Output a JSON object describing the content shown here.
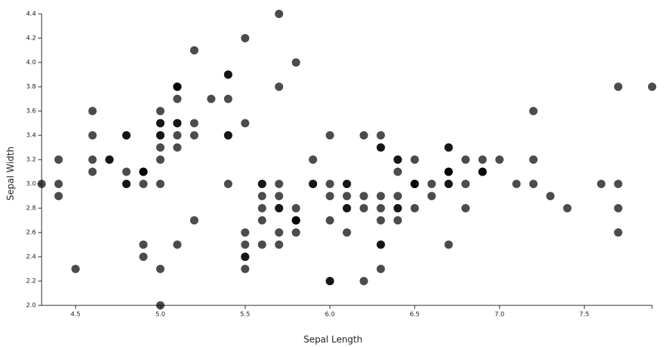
{
  "chart_data": {
    "type": "scatter",
    "x_label": "Sepal Length",
    "y_label": "Sepal Width",
    "color": "#000000",
    "opacity": 0.7,
    "xlim": [
      4.3,
      7.9
    ],
    "ylim": [
      2.0,
      4.4
    ],
    "xticks": [
      4.5,
      {
        "value": 5.0,
        "label": "5.0"
      },
      5.5,
      {
        "value": 6.0,
        "label": "6.0"
      },
      6.5,
      {
        "value": 7.0,
        "label": "7.0"
      },
      7.5
    ],
    "yticks": [
      {
        "value": 2.0,
        "label": "2.0"
      },
      2.2,
      2.4,
      2.6,
      2.8,
      {
        "value": 3.0,
        "label": "3.0"
      },
      3.2,
      3.4,
      3.6,
      3.8,
      {
        "value": 4.0,
        "label": "4.0"
      },
      4.2,
      4.4
    ],
    "x": [
      5.1,
      4.9,
      4.7,
      4.6,
      5.0,
      5.4,
      4.6,
      5.0,
      4.4,
      4.9,
      5.4,
      4.8,
      4.8,
      4.3,
      5.8,
      5.7,
      5.4,
      5.1,
      5.7,
      5.1,
      5.4,
      5.1,
      4.6,
      5.1,
      4.8,
      5.0,
      5.0,
      5.2,
      5.2,
      4.7,
      4.8,
      5.4,
      5.2,
      5.5,
      4.9,
      5.0,
      5.5,
      4.9,
      4.4,
      5.1,
      5.0,
      4.5,
      4.4,
      5.0,
      5.1,
      4.8,
      5.1,
      4.6,
      5.3,
      5.0,
      7.0,
      6.4,
      6.9,
      5.5,
      6.5,
      5.7,
      6.3,
      4.9,
      6.6,
      5.2,
      5.0,
      5.9,
      6.0,
      6.1,
      5.6,
      6.7,
      5.6,
      5.8,
      6.2,
      5.6,
      5.9,
      6.1,
      6.3,
      6.1,
      6.4,
      6.6,
      6.8,
      6.7,
      6.0,
      5.7,
      5.5,
      5.5,
      5.8,
      6.0,
      5.4,
      6.0,
      6.7,
      6.3,
      5.6,
      5.5,
      5.5,
      6.1,
      5.8,
      5.0,
      5.6,
      5.7,
      5.7,
      6.2,
      5.1,
      5.7,
      6.3,
      5.8,
      7.1,
      6.3,
      6.5,
      7.6,
      4.9,
      7.3,
      6.7,
      7.2,
      6.5,
      6.4,
      6.8,
      5.7,
      5.8,
      6.4,
      6.5,
      7.7,
      7.7,
      6.0,
      6.9,
      5.6,
      7.7,
      6.3,
      6.7,
      7.2,
      6.2,
      6.1,
      6.4,
      7.2,
      7.4,
      7.9,
      6.4,
      6.3,
      6.1,
      7.7,
      6.3,
      6.4,
      6.0,
      6.9,
      6.7,
      6.9,
      5.8,
      6.8,
      6.7,
      6.7,
      6.3,
      6.5,
      6.2,
      5.9
    ],
    "values": [
      3.5,
      3.0,
      3.2,
      3.1,
      3.6,
      3.9,
      3.4,
      3.4,
      2.9,
      3.1,
      3.7,
      3.4,
      3.0,
      3.0,
      4.0,
      4.4,
      3.9,
      3.5,
      3.8,
      3.8,
      3.4,
      3.7,
      3.6,
      3.3,
      3.4,
      3.0,
      3.4,
      3.5,
      3.4,
      3.2,
      3.1,
      3.4,
      4.1,
      4.2,
      3.1,
      3.2,
      3.5,
      3.1,
      3.0,
      3.4,
      3.5,
      2.3,
      3.2,
      3.5,
      3.8,
      3.0,
      3.8,
      3.2,
      3.7,
      3.3,
      3.2,
      3.2,
      3.1,
      2.3,
      2.8,
      2.8,
      3.3,
      2.4,
      2.9,
      2.7,
      2.0,
      3.0,
      2.2,
      2.9,
      2.9,
      3.1,
      3.0,
      2.7,
      2.2,
      2.5,
      3.2,
      2.8,
      2.5,
      2.8,
      2.9,
      3.0,
      2.8,
      3.0,
      2.9,
      2.6,
      2.4,
      2.4,
      2.7,
      2.7,
      3.0,
      3.4,
      3.1,
      2.3,
      3.0,
      2.5,
      2.6,
      3.0,
      2.6,
      2.3,
      2.7,
      3.0,
      2.9,
      2.9,
      2.5,
      2.8,
      3.3,
      2.7,
      3.0,
      2.9,
      3.0,
      3.0,
      2.5,
      2.9,
      2.5,
      3.6,
      3.2,
      2.7,
      3.0,
      2.5,
      2.8,
      3.2,
      3.0,
      3.8,
      2.6,
      2.2,
      3.2,
      2.8,
      2.8,
      2.7,
      3.3,
      3.2,
      2.8,
      3.0,
      2.8,
      3.0,
      2.8,
      3.8,
      2.8,
      2.8,
      2.6,
      3.0,
      3.4,
      3.1,
      3.0,
      3.1,
      3.1,
      3.1,
      2.7,
      3.2,
      3.3,
      3.0,
      2.5,
      3.0,
      3.4,
      3.0
    ]
  }
}
